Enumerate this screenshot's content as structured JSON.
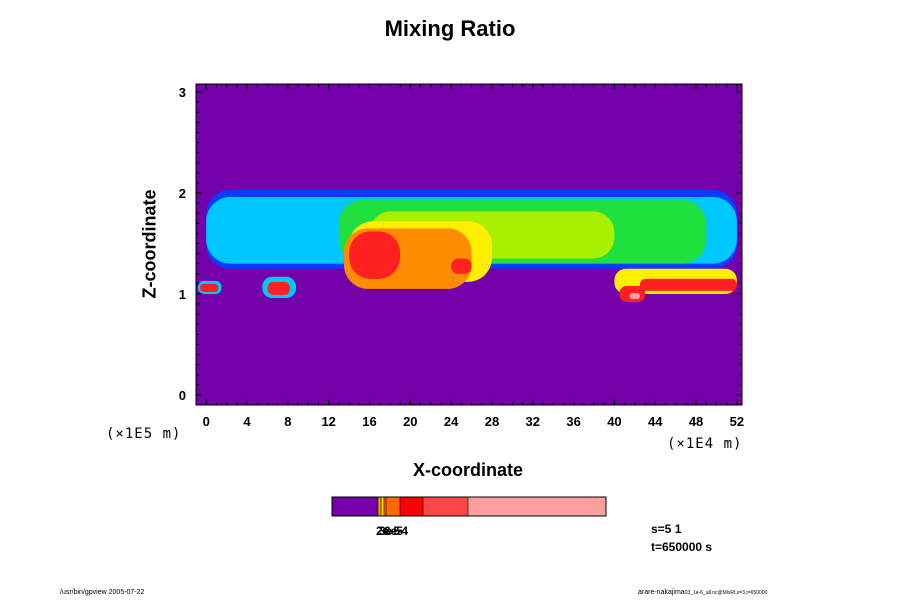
{
  "chart_data": {
    "type": "heatmap",
    "title": "Mixing Ratio",
    "xlabel": "X-coordinate",
    "ylabel": "Z-coordinate",
    "x_units": "(×1E4 m)",
    "y_units": "(×1E5 m)",
    "xlim": [
      -1,
      52.5
    ],
    "ylim": [
      -0.1,
      3.08
    ],
    "xticks": [
      0,
      4,
      8,
      12,
      16,
      20,
      24,
      28,
      32,
      36,
      40,
      44,
      48,
      52
    ],
    "yticks": [
      0,
      1,
      2,
      3
    ],
    "background_color": "#7400aa",
    "colorbar": {
      "colors": [
        "#7400aa",
        "#f2a400",
        "#ffcc00",
        "#ff6a00",
        "#ff0000",
        "#ff4646",
        "#ff9e9e"
      ],
      "tick_labels": [
        "2e-5",
        "3e-5",
        "6e-4"
      ]
    },
    "regions": [
      {
        "level": "deep-blue",
        "color": "#0a3cff",
        "x0": 0,
        "x1": 52,
        "y0": 1.25,
        "y1": 2.03
      },
      {
        "level": "cyan",
        "color": "#00c8ff",
        "x0": 0,
        "x1": 52,
        "y0": 1.3,
        "y1": 1.96
      },
      {
        "level": "green",
        "color": "#20e040",
        "x0": 13,
        "x1": 49,
        "y0": 1.3,
        "y1": 1.93
      },
      {
        "level": "yellow-green",
        "color": "#a8f000",
        "x0": 16,
        "x1": 40,
        "y0": 1.35,
        "y1": 1.82
      },
      {
        "level": "yellow",
        "color": "#ffee00",
        "x0": 14,
        "x1": 28,
        "y0": 1.12,
        "y1": 1.72
      },
      {
        "level": "orange",
        "color": "#ff8c00",
        "x0": 13.5,
        "x1": 26,
        "y0": 1.05,
        "y1": 1.65
      },
      {
        "level": "red",
        "color": "#ff2020",
        "x0": 14,
        "x1": 19,
        "y0": 1.15,
        "y1": 1.62
      },
      {
        "level": "red",
        "color": "#ff2020",
        "x0": 24,
        "x1": 26,
        "y0": 1.2,
        "y1": 1.35
      },
      {
        "level": "cyan",
        "color": "#00c8ff",
        "x0": -0.8,
        "x1": 1.5,
        "y0": 1.0,
        "y1": 1.13
      },
      {
        "level": "red",
        "color": "#ff2020",
        "x0": -0.6,
        "x1": 1.2,
        "y0": 1.02,
        "y1": 1.1
      },
      {
        "level": "cyan",
        "color": "#00c8ff",
        "x0": 5.5,
        "x1": 8.8,
        "y0": 0.96,
        "y1": 1.17
      },
      {
        "level": "red",
        "color": "#ff2020",
        "x0": 6.0,
        "x1": 8.2,
        "y0": 0.99,
        "y1": 1.12
      },
      {
        "level": "yellow",
        "color": "#ffee00",
        "x0": 40,
        "x1": 52,
        "y0": 1.0,
        "y1": 1.25
      },
      {
        "level": "red",
        "color": "#ff2020",
        "x0": 42.5,
        "x1": 52,
        "y0": 1.03,
        "y1": 1.15
      },
      {
        "level": "red",
        "color": "#ff2020",
        "x0": 40.5,
        "x1": 43,
        "y0": 0.92,
        "y1": 1.08
      },
      {
        "level": "pink",
        "color": "#ff9e9e",
        "x0": 41.5,
        "x1": 42.5,
        "y0": 0.95,
        "y1": 1.01
      }
    ]
  },
  "info": {
    "s": "s=5 1",
    "t": "t=650000 s"
  },
  "footer": {
    "left": "/usr/bin/gpview 2005-07-22",
    "right_main": "arare-nakajima",
    "right_sub": "03_1e-6_all.nc@MixRt,x=3,t=650000"
  }
}
